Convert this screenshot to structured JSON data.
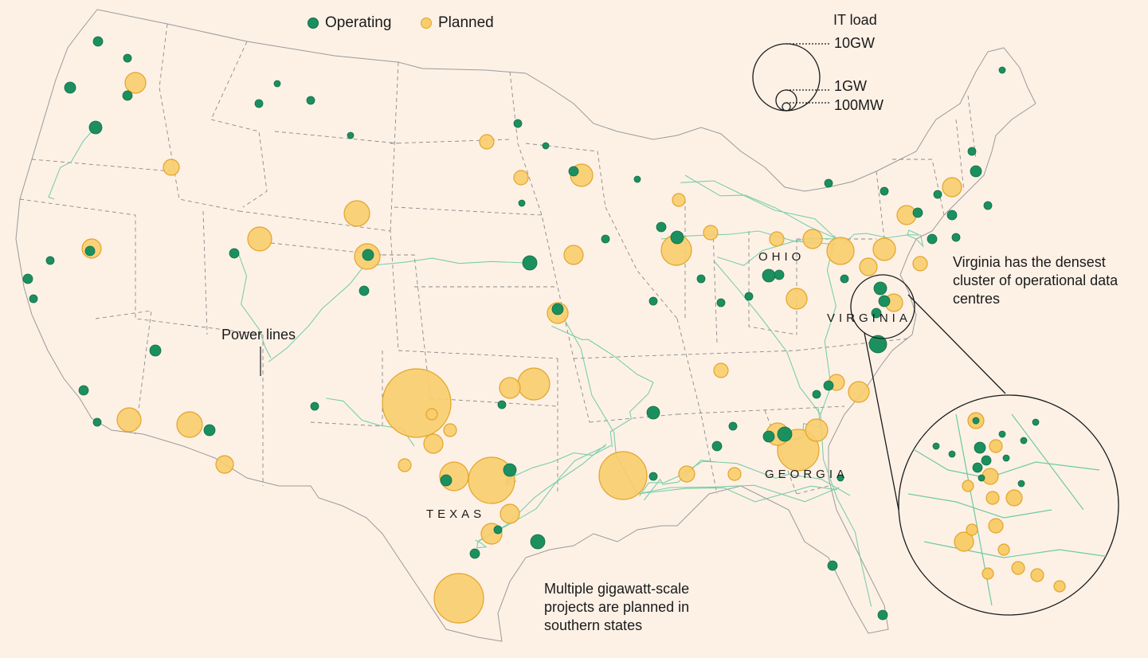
{
  "legend": {
    "operating": "Operating",
    "planned": "Planned",
    "size_title": "IT load",
    "size_labels": [
      "10GW",
      "1GW",
      "100MW"
    ]
  },
  "colors": {
    "background": "#fdf1e6",
    "operating": "#1c8f5f",
    "planned": "#f8cd6c",
    "planned_stroke": "#e3a42c",
    "power_lines": "#6fcaa3",
    "borders": "#8a8a8a",
    "land": "#fdf1e6"
  },
  "annotations": {
    "power_lines": "Power lines",
    "virginia_note": "Virginia has the densest cluster of operational data centres",
    "south_note": "Multiple gigawatt-scale projects are planned in southern states"
  },
  "states": {
    "ohio": "OHIO",
    "virginia": "VIRGINIA",
    "texas": "TEXAS",
    "georgia": "GEORGIA"
  },
  "icons": [
    "operating-dot-icon",
    "planned-dot-icon",
    "size-scale-icon",
    "zoom-inset-icon"
  ]
}
